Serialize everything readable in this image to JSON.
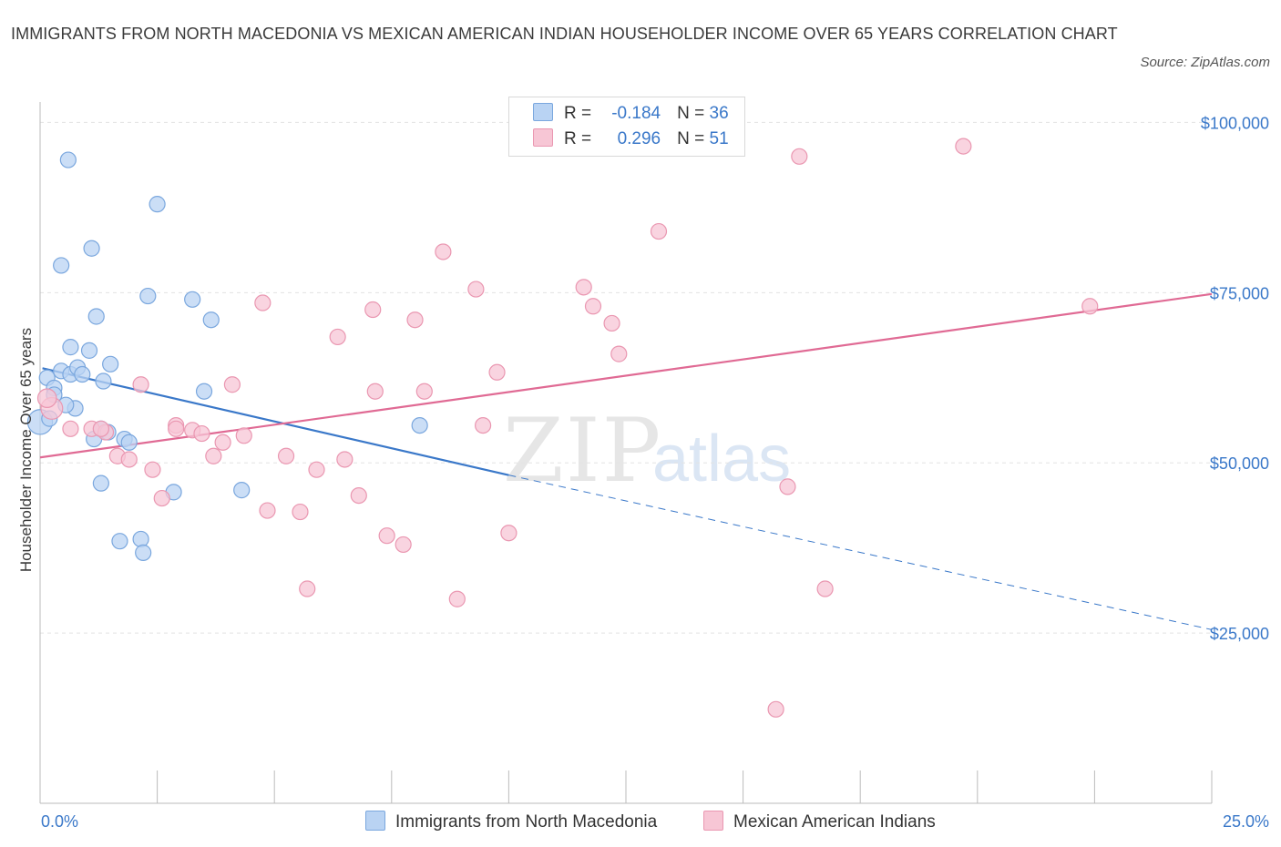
{
  "header": {
    "title": "IMMIGRANTS FROM NORTH MACEDONIA VS MEXICAN AMERICAN INDIAN HOUSEHOLDER INCOME OVER 65 YEARS CORRELATION CHART",
    "source": "Source: ZipAtlas.com"
  },
  "watermark": {
    "zip": "ZIP",
    "atlas": "atlas"
  },
  "legend": {
    "rows": [
      {
        "r_label": "R =",
        "r_value": "-0.184",
        "n_label": "N =",
        "n_value": "36"
      },
      {
        "r_label": "R =",
        "r_value": "0.296",
        "n_label": "N =",
        "n_value": "51"
      }
    ]
  },
  "bottom_legend": {
    "items": [
      {
        "label": "Immigrants from North Macedonia"
      },
      {
        "label": "Mexican American Indians"
      }
    ]
  },
  "colors": {
    "blue_fill": "#b9d3f3",
    "blue_stroke": "#7aa7de",
    "blue_line": "#3a78c9",
    "pink_fill": "#f7c6d5",
    "pink_stroke": "#ea97b1",
    "pink_line": "#e06a94",
    "grid": "#e3e3e3",
    "axis": "#bbbbbb"
  },
  "chart_data": {
    "type": "scatter",
    "title": "IMMIGRANTS FROM NORTH MACEDONIA VS MEXICAN AMERICAN INDIAN HOUSEHOLDER INCOME OVER 65 YEARS CORRELATION CHART",
    "xlabel": "",
    "ylabel": "Householder Income Over 65 years",
    "xlim": [
      0,
      25
    ],
    "ylim": [
      0,
      103000
    ],
    "x_tick_labels": [
      {
        "value": 0,
        "label": "0.0%"
      },
      {
        "value": 25,
        "label": "25.0%"
      }
    ],
    "y_tick_labels": [
      {
        "value": 25000,
        "label": "$25,000"
      },
      {
        "value": 50000,
        "label": "$50,000"
      },
      {
        "value": 75000,
        "label": "$75,000"
      },
      {
        "value": 100000,
        "label": "$100,000"
      }
    ],
    "x_minor_ticks": [
      2.5,
      5,
      7.5,
      10,
      12.5,
      15,
      17.5,
      20,
      22.5,
      25
    ],
    "series": [
      {
        "name": "Immigrants from North Macedonia",
        "color": "#b9d3f3",
        "R": -0.184,
        "N": 36,
        "trend": {
          "x0": 0.05,
          "y0": 63900,
          "x1": 10.0,
          "y1": 48200,
          "dash_to_x": 25.0,
          "dash_to_y": 25500
        },
        "points": [
          [
            0.0,
            56000,
            16
          ],
          [
            0.15,
            62500,
            10
          ],
          [
            0.3,
            61000,
            10
          ],
          [
            0.45,
            63500,
            10
          ],
          [
            0.6,
            94500,
            10
          ],
          [
            0.65,
            63000,
            10
          ],
          [
            0.65,
            67000,
            10
          ],
          [
            0.75,
            58000,
            10
          ],
          [
            0.8,
            64000,
            10
          ],
          [
            0.9,
            63000,
            10
          ],
          [
            0.45,
            79000,
            10
          ],
          [
            1.1,
            81500,
            10
          ],
          [
            1.2,
            71500,
            10
          ],
          [
            1.05,
            66500,
            10
          ],
          [
            1.35,
            62000,
            10
          ],
          [
            1.5,
            64500,
            10
          ],
          [
            1.15,
            53500,
            10
          ],
          [
            1.3,
            55000,
            10
          ],
          [
            1.45,
            54500,
            10
          ],
          [
            1.8,
            53500,
            10
          ],
          [
            1.9,
            53000,
            10
          ],
          [
            1.3,
            47000,
            10
          ],
          [
            1.7,
            38500,
            10
          ],
          [
            2.15,
            38800,
            10
          ],
          [
            2.2,
            36800,
            10
          ],
          [
            2.3,
            74500,
            10
          ],
          [
            2.5,
            88000,
            10
          ],
          [
            2.85,
            45700,
            10
          ],
          [
            3.25,
            74000,
            10
          ],
          [
            3.5,
            60500,
            10
          ],
          [
            3.65,
            71000,
            10
          ],
          [
            4.3,
            46000,
            10
          ],
          [
            8.1,
            55500,
            10
          ],
          [
            0.3,
            60000,
            10
          ],
          [
            0.55,
            58500,
            10
          ],
          [
            0.2,
            56500,
            10
          ]
        ]
      },
      {
        "name": "Mexican American Indians",
        "color": "#f7c6d5",
        "R": 0.296,
        "N": 51,
        "trend": {
          "x0": 0.0,
          "y0": 50800,
          "x1": 25.0,
          "y1": 74800
        },
        "points": [
          [
            0.25,
            58000,
            14
          ],
          [
            0.65,
            55000,
            10
          ],
          [
            1.1,
            55000,
            10
          ],
          [
            1.4,
            54500,
            10
          ],
          [
            1.65,
            51000,
            10
          ],
          [
            1.9,
            50500,
            10
          ],
          [
            2.15,
            61500,
            10
          ],
          [
            2.4,
            49000,
            10
          ],
          [
            2.6,
            44800,
            10
          ],
          [
            2.9,
            55500,
            10
          ],
          [
            3.25,
            54800,
            10
          ],
          [
            3.45,
            54300,
            10
          ],
          [
            3.7,
            51000,
            10
          ],
          [
            3.9,
            53000,
            10
          ],
          [
            4.1,
            61500,
            10
          ],
          [
            4.35,
            54000,
            10
          ],
          [
            4.75,
            73500,
            10
          ],
          [
            4.85,
            43000,
            10
          ],
          [
            5.25,
            51000,
            10
          ],
          [
            5.55,
            42800,
            10
          ],
          [
            5.7,
            31500,
            10
          ],
          [
            5.9,
            49000,
            10
          ],
          [
            6.35,
            68500,
            10
          ],
          [
            6.5,
            50500,
            10
          ],
          [
            6.8,
            45200,
            10
          ],
          [
            7.1,
            72500,
            10
          ],
          [
            7.15,
            60500,
            10
          ],
          [
            7.4,
            39300,
            10
          ],
          [
            7.75,
            38000,
            10
          ],
          [
            8.0,
            71000,
            10
          ],
          [
            8.2,
            60500,
            10
          ],
          [
            8.6,
            81000,
            10
          ],
          [
            8.9,
            30000,
            10
          ],
          [
            9.3,
            75500,
            10
          ],
          [
            9.45,
            55500,
            10
          ],
          [
            9.75,
            63300,
            10
          ],
          [
            10.0,
            39700,
            10
          ],
          [
            11.6,
            75800,
            10
          ],
          [
            11.8,
            73000,
            10
          ],
          [
            12.2,
            70500,
            10
          ],
          [
            12.35,
            66000,
            10
          ],
          [
            13.2,
            84000,
            10
          ],
          [
            15.7,
            13800,
            10
          ],
          [
            15.95,
            46500,
            10
          ],
          [
            16.2,
            95000,
            10
          ],
          [
            16.75,
            31500,
            10
          ],
          [
            19.7,
            96500,
            10
          ],
          [
            22.4,
            73000,
            10
          ],
          [
            1.3,
            55000,
            10
          ],
          [
            2.9,
            55000,
            10
          ],
          [
            0.15,
            59500,
            12
          ]
        ]
      }
    ]
  }
}
